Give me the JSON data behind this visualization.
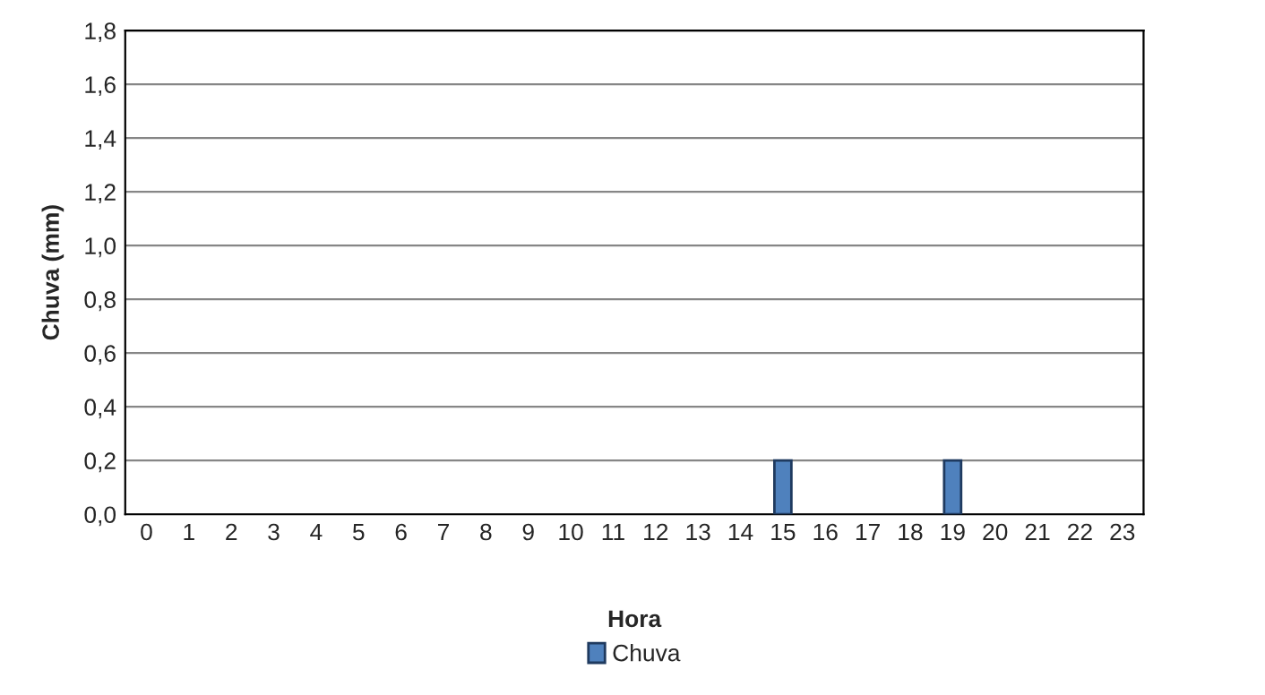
{
  "chart_data": {
    "type": "bar",
    "xlabel": "Hora",
    "ylabel": "Chuva (mm)",
    "categories": [
      "0",
      "1",
      "2",
      "3",
      "4",
      "5",
      "6",
      "7",
      "8",
      "9",
      "10",
      "11",
      "12",
      "13",
      "14",
      "15",
      "16",
      "17",
      "18",
      "19",
      "20",
      "21",
      "22",
      "23"
    ],
    "series": [
      {
        "name": "Chuva",
        "color": "#4f81bd",
        "values": [
          0,
          0,
          0,
          0,
          0,
          0,
          0,
          0,
          0,
          0,
          0,
          0,
          0,
          0,
          0,
          0.2,
          0,
          0,
          0,
          0.2,
          0,
          0,
          0,
          0
        ]
      }
    ],
    "ylim": [
      0,
      1.8
    ],
    "yticks": [
      {
        "value": 0,
        "label": "0,0"
      },
      {
        "value": 0.2,
        "label": "0,2"
      },
      {
        "value": 0.4,
        "label": "0,4"
      },
      {
        "value": 0.6,
        "label": "0,6"
      },
      {
        "value": 0.8,
        "label": "0,8"
      },
      {
        "value": 1.0,
        "label": "1,0"
      },
      {
        "value": 1.2,
        "label": "1,2"
      },
      {
        "value": 1.4,
        "label": "1,4"
      },
      {
        "value": 1.6,
        "label": "1,6"
      },
      {
        "value": 1.8,
        "label": "1,8"
      }
    ],
    "grid": "y",
    "legend": "bottom"
  }
}
